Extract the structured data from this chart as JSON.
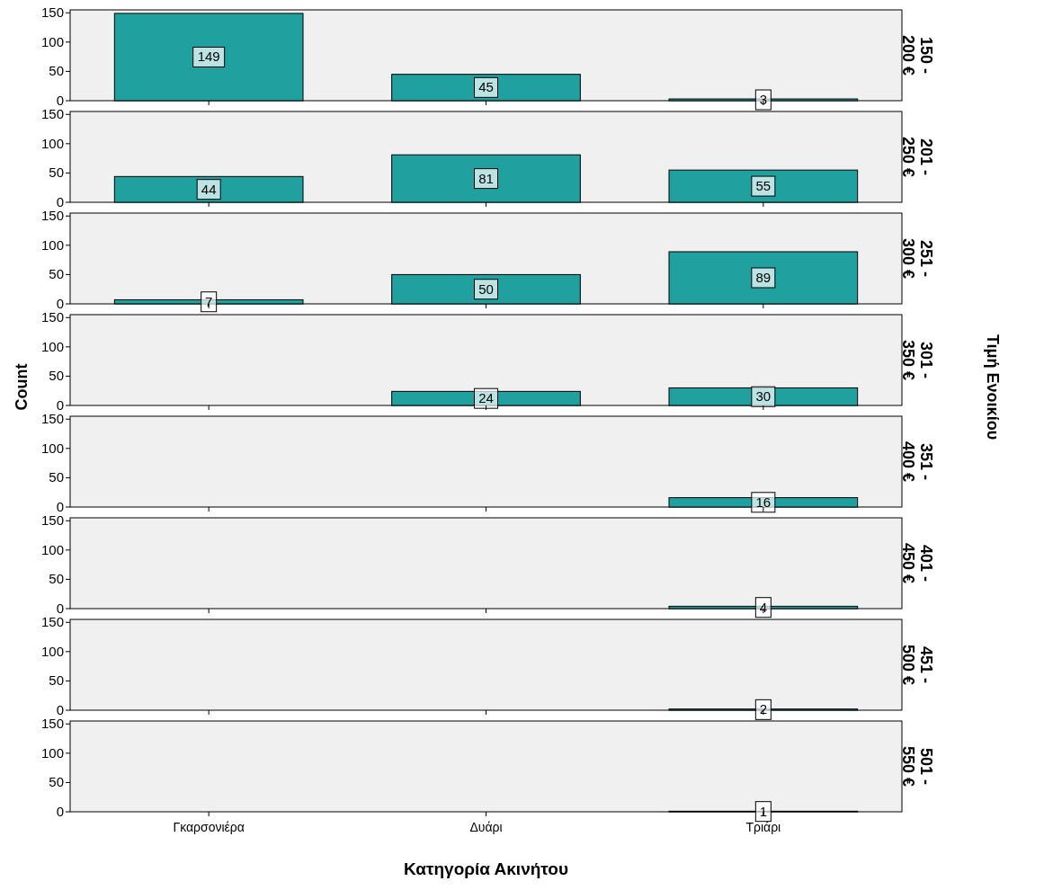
{
  "chart_data": [
    {
      "type": "bar",
      "title": "150 - 200 €",
      "categories": [
        "Γκαρσονιέρα",
        "Δυάρι",
        "Τριάρι"
      ],
      "values": [
        149,
        45,
        3
      ],
      "color": "#21a0a0",
      "ylim": [
        0,
        155
      ],
      "yticks": [
        0,
        50,
        100,
        150
      ],
      "data_labels": true,
      "tick_labels": "y"
    },
    {
      "type": "bar",
      "title": "201 - 250 €",
      "categories": [
        "Γκαρσονιέρα",
        "Δυάρι",
        "Τριάρι"
      ],
      "values": [
        44,
        81,
        55
      ],
      "color": "#21a0a0",
      "ylim": [
        0,
        155
      ],
      "yticks": [
        0,
        50,
        100,
        150
      ],
      "data_labels": true,
      "tick_labels": "y"
    },
    {
      "type": "bar",
      "title": "251 - 300 €",
      "categories": [
        "Γκαρσονιέρα",
        "Δυάρι",
        "Τριάρι"
      ],
      "values": [
        7,
        50,
        89
      ],
      "color": "#21a0a0",
      "ylim": [
        0,
        155
      ],
      "yticks": [
        0,
        50,
        100,
        150
      ],
      "data_labels": true,
      "tick_labels": "y"
    },
    {
      "type": "bar",
      "title": "301 - 350 €",
      "ylabel": "Count",
      "annotations": [
        "Τιμή Ενοικίου"
      ],
      "categories": [
        "Γκαρσονιέρα",
        "Δυάρι",
        "Τριάρι"
      ],
      "values": [
        null,
        24,
        30
      ],
      "color": "#21a0a0",
      "ylim": [
        0,
        155
      ],
      "yticks": [
        0,
        50,
        100,
        150
      ],
      "data_labels": true,
      "tick_labels": "y"
    },
    {
      "type": "bar",
      "title": "351 - 400 €",
      "categories": [
        "Γκαρσονιέρα",
        "Δυάρι",
        "Τριάρι"
      ],
      "values": [
        null,
        null,
        16
      ],
      "color": "#21a0a0",
      "ylim": [
        0,
        155
      ],
      "yticks": [
        0,
        50,
        100,
        150
      ],
      "data_labels": true,
      "tick_labels": "y"
    },
    {
      "type": "bar",
      "title": "401 - 450 €",
      "categories": [
        "Γκαρσονιέρα",
        "Δυάρι",
        "Τριάρι"
      ],
      "values": [
        null,
        null,
        4
      ],
      "color": "#21a0a0",
      "ylim": [
        0,
        155
      ],
      "yticks": [
        0,
        50,
        100,
        150
      ],
      "data_labels": true,
      "tick_labels": "y"
    },
    {
      "type": "bar",
      "title": "451 - 500 €",
      "categories": [
        "Γκαρσονιέρα",
        "Δυάρι",
        "Τριάρι"
      ],
      "values": [
        null,
        null,
        2
      ],
      "color": "#21a0a0",
      "ylim": [
        0,
        155
      ],
      "yticks": [
        0,
        50,
        100,
        150
      ],
      "data_labels": true,
      "tick_labels": "y"
    },
    {
      "type": "bar",
      "title": "501 - 550 €",
      "xlabel": "Κατηγορία Ακινήτου",
      "categories": [
        "Γκαρσονιέρα",
        "Δυάρι",
        "Τριάρι"
      ],
      "values": [
        null,
        null,
        1
      ],
      "color": "#21a0a0",
      "ylim": [
        0,
        155
      ],
      "yticks": [
        0,
        50,
        100,
        150
      ],
      "data_labels": true
    }
  ]
}
